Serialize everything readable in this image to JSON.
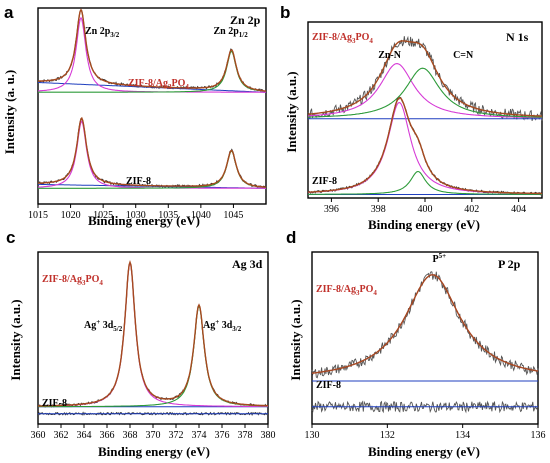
{
  "chart_data": [
    {
      "type": "line",
      "panel_label": "a",
      "title": "Zn 2p",
      "xlabel": "Binding energy (eV)",
      "ylabel": "Intensity (a. u.)",
      "xlim": [
        1015,
        1050
      ],
      "xticks": [
        "1015",
        "1020",
        "1025",
        "1030",
        "1035",
        "1040",
        "1045"
      ],
      "samples": [
        {
          "label": "ZIF-8/Ag",
          "sub1": "3",
          "mid": "PO",
          "sub2": "4",
          "color": "#c0312b",
          "peaks": [
            {
              "center": 1021.6,
              "height": 1.0,
              "width": 0.9
            },
            {
              "center": 1044.7,
              "height": 0.55,
              "width": 0.9
            }
          ],
          "background": 0.05
        },
        {
          "label": "ZIF-8",
          "color": "#000000",
          "peaks": [
            {
              "center": 1021.7,
              "height": 0.9,
              "width": 0.9
            },
            {
              "center": 1044.7,
              "height": 0.5,
              "width": 0.9
            }
          ],
          "background": 0.02
        }
      ],
      "annotations": [
        {
          "text": "Zn 2p",
          "sub": "3/2",
          "x": 1021.6
        },
        {
          "text": "Zn 2p",
          "sub": "1/2",
          "x": 1044.7
        }
      ]
    },
    {
      "type": "line",
      "panel_label": "b",
      "title": "N 1s",
      "xlabel": "Binding energy (eV)",
      "ylabel": "Intensity (a.u.)",
      "xlim": [
        395,
        405
      ],
      "xticks": [
        "396",
        "398",
        "400",
        "402",
        "404"
      ],
      "samples": [
        {
          "label": "ZIF-8/Ag",
          "sub1": "3",
          "mid": "PO",
          "sub2": "4",
          "color": "#c0312b",
          "peaks": [
            {
              "center": 398.8,
              "height": 0.6,
              "width": 0.9,
              "name": "Zn-N"
            },
            {
              "center": 399.9,
              "height": 0.55,
              "width": 0.9,
              "name": "C=N"
            }
          ],
          "noise": true
        },
        {
          "label": "ZIF-8",
          "color": "#000000",
          "peaks": [
            {
              "center": 398.9,
              "height": 1.0,
              "width": 0.6
            },
            {
              "center": 399.7,
              "height": 0.25,
              "width": 0.4
            }
          ]
        }
      ],
      "annotations": [
        {
          "text": "Zn-N",
          "x": 398.0
        },
        {
          "text": "C=N",
          "x": 401.2
        }
      ]
    },
    {
      "type": "line",
      "panel_label": "c",
      "title": "Ag 3d",
      "xlabel": "Binding energy (eV)",
      "ylabel": "Intensity (a.u.)",
      "xlim": [
        360,
        380
      ],
      "xticks": [
        "360",
        "362",
        "364",
        "366",
        "368",
        "370",
        "372",
        "374",
        "376",
        "378",
        "380"
      ],
      "samples": [
        {
          "label": "ZIF-8/Ag",
          "sub1": "3",
          "mid": "PO",
          "sub2": "4",
          "color": "#c0312b",
          "peaks": [
            {
              "center": 368.0,
              "height": 1.0,
              "width": 0.55
            },
            {
              "center": 374.0,
              "height": 0.7,
              "width": 0.55
            }
          ]
        },
        {
          "label": "ZIF-8",
          "color": "#000000",
          "peaks": []
        }
      ],
      "annotations": [
        {
          "text": "Ag",
          "sup": "+",
          "mid": " 3d",
          "sub": "5/2",
          "x": 368.0
        },
        {
          "text": "Ag",
          "sup": "+",
          "mid": " 3d",
          "sub": "3/2",
          "x": 374.0
        }
      ]
    },
    {
      "type": "line",
      "panel_label": "d",
      "title": "P 2p",
      "xlabel": "Binding energy (eV)",
      "ylabel": "Intensity (a.u.)",
      "xlim": [
        130,
        136
      ],
      "xticks": [
        "130",
        "132",
        "134",
        "136"
      ],
      "samples": [
        {
          "label": "ZIF-8/Ag",
          "sub1": "3",
          "mid": "PO",
          "sub2": "4",
          "color": "#c0312b",
          "peaks": [
            {
              "center": 133.2,
              "height": 1.0,
              "width": 0.9,
              "name": "P5+"
            }
          ],
          "noise": true
        },
        {
          "label": "ZIF-8",
          "color": "#000000",
          "peaks": [],
          "noise": true
        }
      ],
      "annotations": [
        {
          "text": "P",
          "sup": "5+",
          "x": 133.2
        }
      ]
    }
  ]
}
